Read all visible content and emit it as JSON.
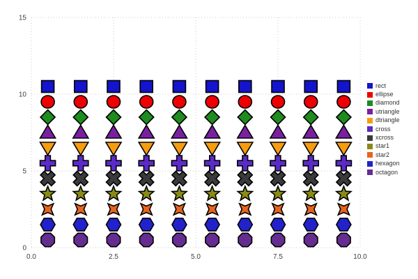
{
  "chart_data": {
    "type": "scatter",
    "title": "",
    "xlabel": "",
    "ylabel": "",
    "xlim": [
      0.0,
      10.0
    ],
    "ylim": [
      0,
      15
    ],
    "grid": true,
    "legend_position": "right",
    "x_ticks": [
      "0.0",
      "2.5",
      "5.0",
      "7.5",
      "10.0"
    ],
    "x_tick_values": [
      0,
      2.5,
      5,
      7.5,
      10
    ],
    "y_ticks": [
      "0",
      "5",
      "10",
      "15"
    ],
    "y_tick_values": [
      0,
      5,
      10,
      15
    ],
    "x": [
      0.5,
      1.5,
      2.5,
      3.5,
      4.5,
      5.5,
      6.5,
      7.5,
      8.5,
      9.5
    ],
    "series": [
      {
        "name": "rect",
        "shape": "rect",
        "color": "#1414cc",
        "y": 10.5
      },
      {
        "name": "ellipse",
        "shape": "ellipse",
        "color": "#ee0000",
        "y": 9.5
      },
      {
        "name": "diamond",
        "shape": "diamond",
        "color": "#1e8c1e",
        "y": 8.5
      },
      {
        "name": "utriangle",
        "shape": "utriangle",
        "color": "#7b1fa2",
        "y": 7.5
      },
      {
        "name": "dtriangle",
        "shape": "dtriangle",
        "color": "#f59d0f",
        "y": 6.5
      },
      {
        "name": "cross",
        "shape": "cross",
        "color": "#5a2bc8",
        "y": 5.5
      },
      {
        "name": "xcross",
        "shape": "xcross",
        "color": "#3a3a3a",
        "y": 4.5
      },
      {
        "name": "star1",
        "shape": "star1",
        "color": "#8a8a18",
        "y": 3.5
      },
      {
        "name": "star2",
        "shape": "star2",
        "color": "#e8641e",
        "y": 2.5
      },
      {
        "name": "hexagon",
        "shape": "hexagon",
        "color": "#2222cc",
        "y": 1.5
      },
      {
        "name": "octagon",
        "shape": "octagon",
        "color": "#662d91",
        "y": 0.5
      }
    ],
    "colors": {
      "background": "#ffffff",
      "gridline": "#c9c9c9",
      "tick_text": "#404040",
      "marker_outline": "#000000",
      "legend_text": "#333333"
    }
  }
}
